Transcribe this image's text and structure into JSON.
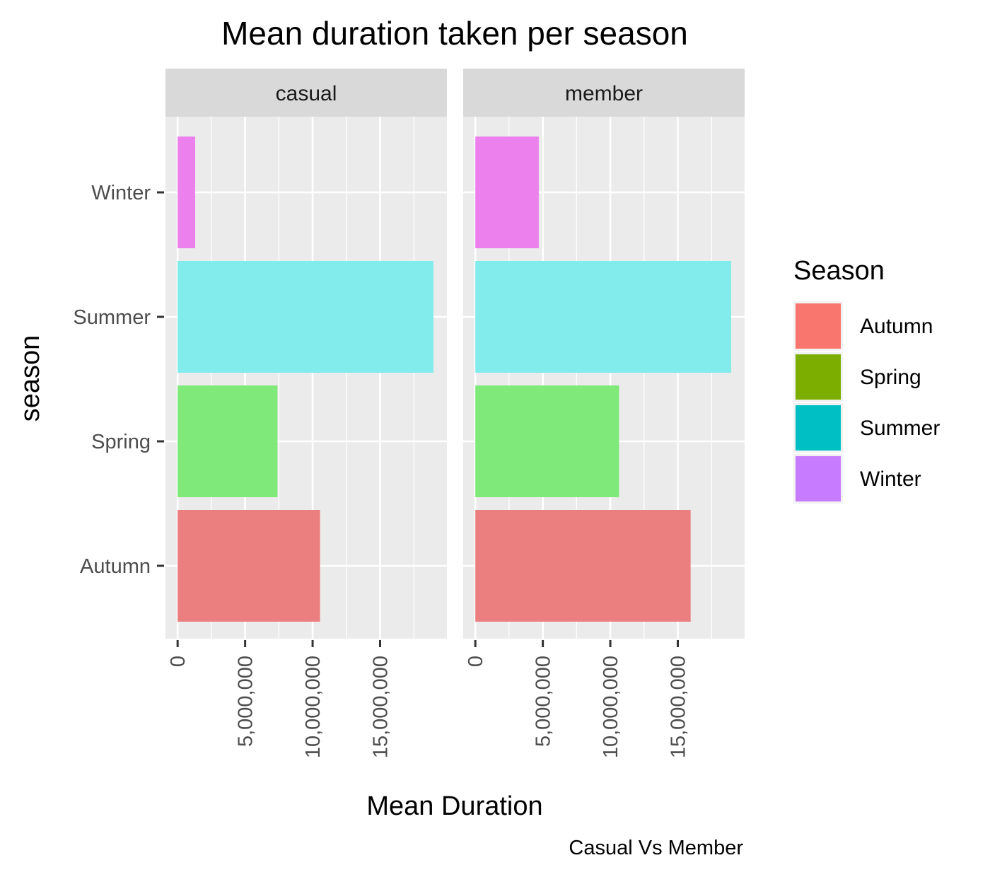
{
  "chart_data": {
    "type": "bar",
    "orientation": "horizontal",
    "title": "Mean duration taken per season",
    "xlabel": "Mean Duration",
    "ylabel": "season",
    "caption": "Casual Vs Member",
    "categories": [
      "Autumn",
      "Spring",
      "Summer",
      "Winter"
    ],
    "x_ticks": [
      0,
      5000000,
      10000000,
      15000000
    ],
    "x_tick_labels": [
      "0",
      "5,000,000",
      "10,000,000",
      "15,000,000"
    ],
    "xlim": [
      -900000,
      19950000
    ],
    "grid": true,
    "legend": {
      "title": "Season",
      "placement": "right",
      "entries": [
        {
          "label": "Autumn",
          "color": "#F8766D"
        },
        {
          "label": "Spring",
          "color": "#7CAE00"
        },
        {
          "label": "Summer",
          "color": "#00BFC4"
        },
        {
          "label": "Winter",
          "color": "#C77CFF"
        }
      ]
    },
    "bar_colors": {
      "Autumn": "#EB7E7E",
      "Spring": "#7FE97A",
      "Summer": "#82EBEB",
      "Winter": "#EC80EC"
    },
    "facets": [
      {
        "label": "casual",
        "values": {
          "Winter": 1300000,
          "Summer": 18950000,
          "Spring": 7400000,
          "Autumn": 10550000
        }
      },
      {
        "label": "member",
        "values": {
          "Winter": 4700000,
          "Summer": 18950000,
          "Spring": 10650000,
          "Autumn": 15950000
        }
      }
    ]
  }
}
